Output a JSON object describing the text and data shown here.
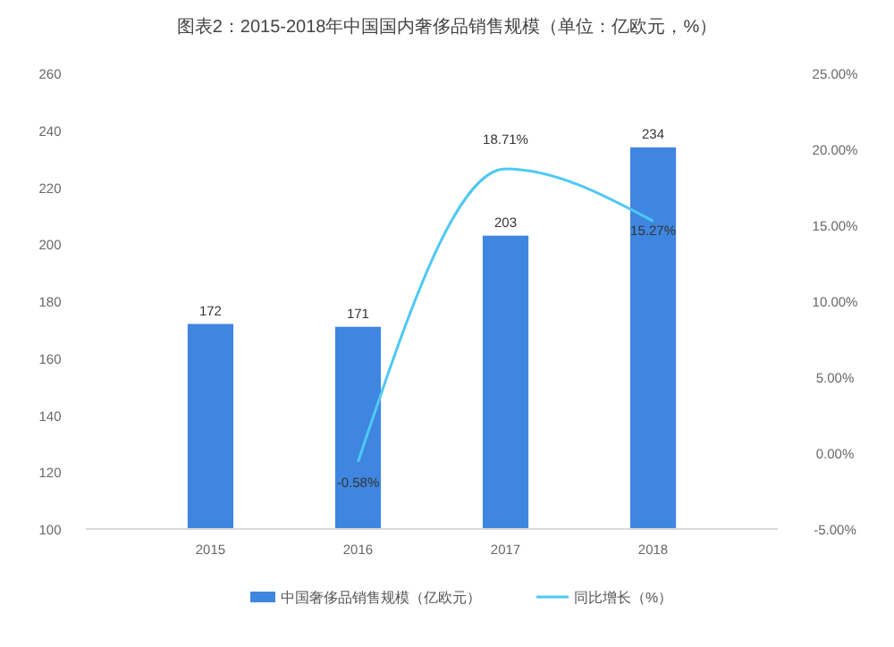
{
  "chart_data": {
    "type": "bar",
    "title": "图表2：2015-2018年中国国内奢侈品销售规模（单位：亿欧元，%）",
    "categories": [
      "2015",
      "2016",
      "2017",
      "2018"
    ],
    "series": [
      {
        "name": "中国奢侈品销售规模（亿欧元）",
        "color": "#3f86e0",
        "values": [
          172,
          171,
          203,
          234
        ]
      },
      {
        "name": "同比增长（%）",
        "type": "line",
        "axis": "y2",
        "color": "#4fc8f5",
        "values": [
          null,
          -0.58,
          18.71,
          15.27
        ],
        "value_labels": [
          null,
          "-0.58%",
          "18.71%",
          "15.27%"
        ]
      }
    ],
    "ylim": [
      100,
      260
    ],
    "yticks": [
      100,
      120,
      140,
      160,
      180,
      200,
      220,
      240,
      260
    ],
    "y2lim": [
      -5,
      25
    ],
    "y2ticks": [
      {
        "value": -5,
        "label": "-5.00%"
      },
      {
        "value": 0,
        "label": "0.00%"
      },
      {
        "value": 5,
        "label": "5.00%"
      },
      {
        "value": 10,
        "label": "10.00%"
      },
      {
        "value": 15,
        "label": "15.00%"
      },
      {
        "value": 20,
        "label": "20.00%"
      },
      {
        "value": 25,
        "label": "25.00%"
      }
    ],
    "data_labels": true,
    "legend": "bottom",
    "grid": false
  }
}
